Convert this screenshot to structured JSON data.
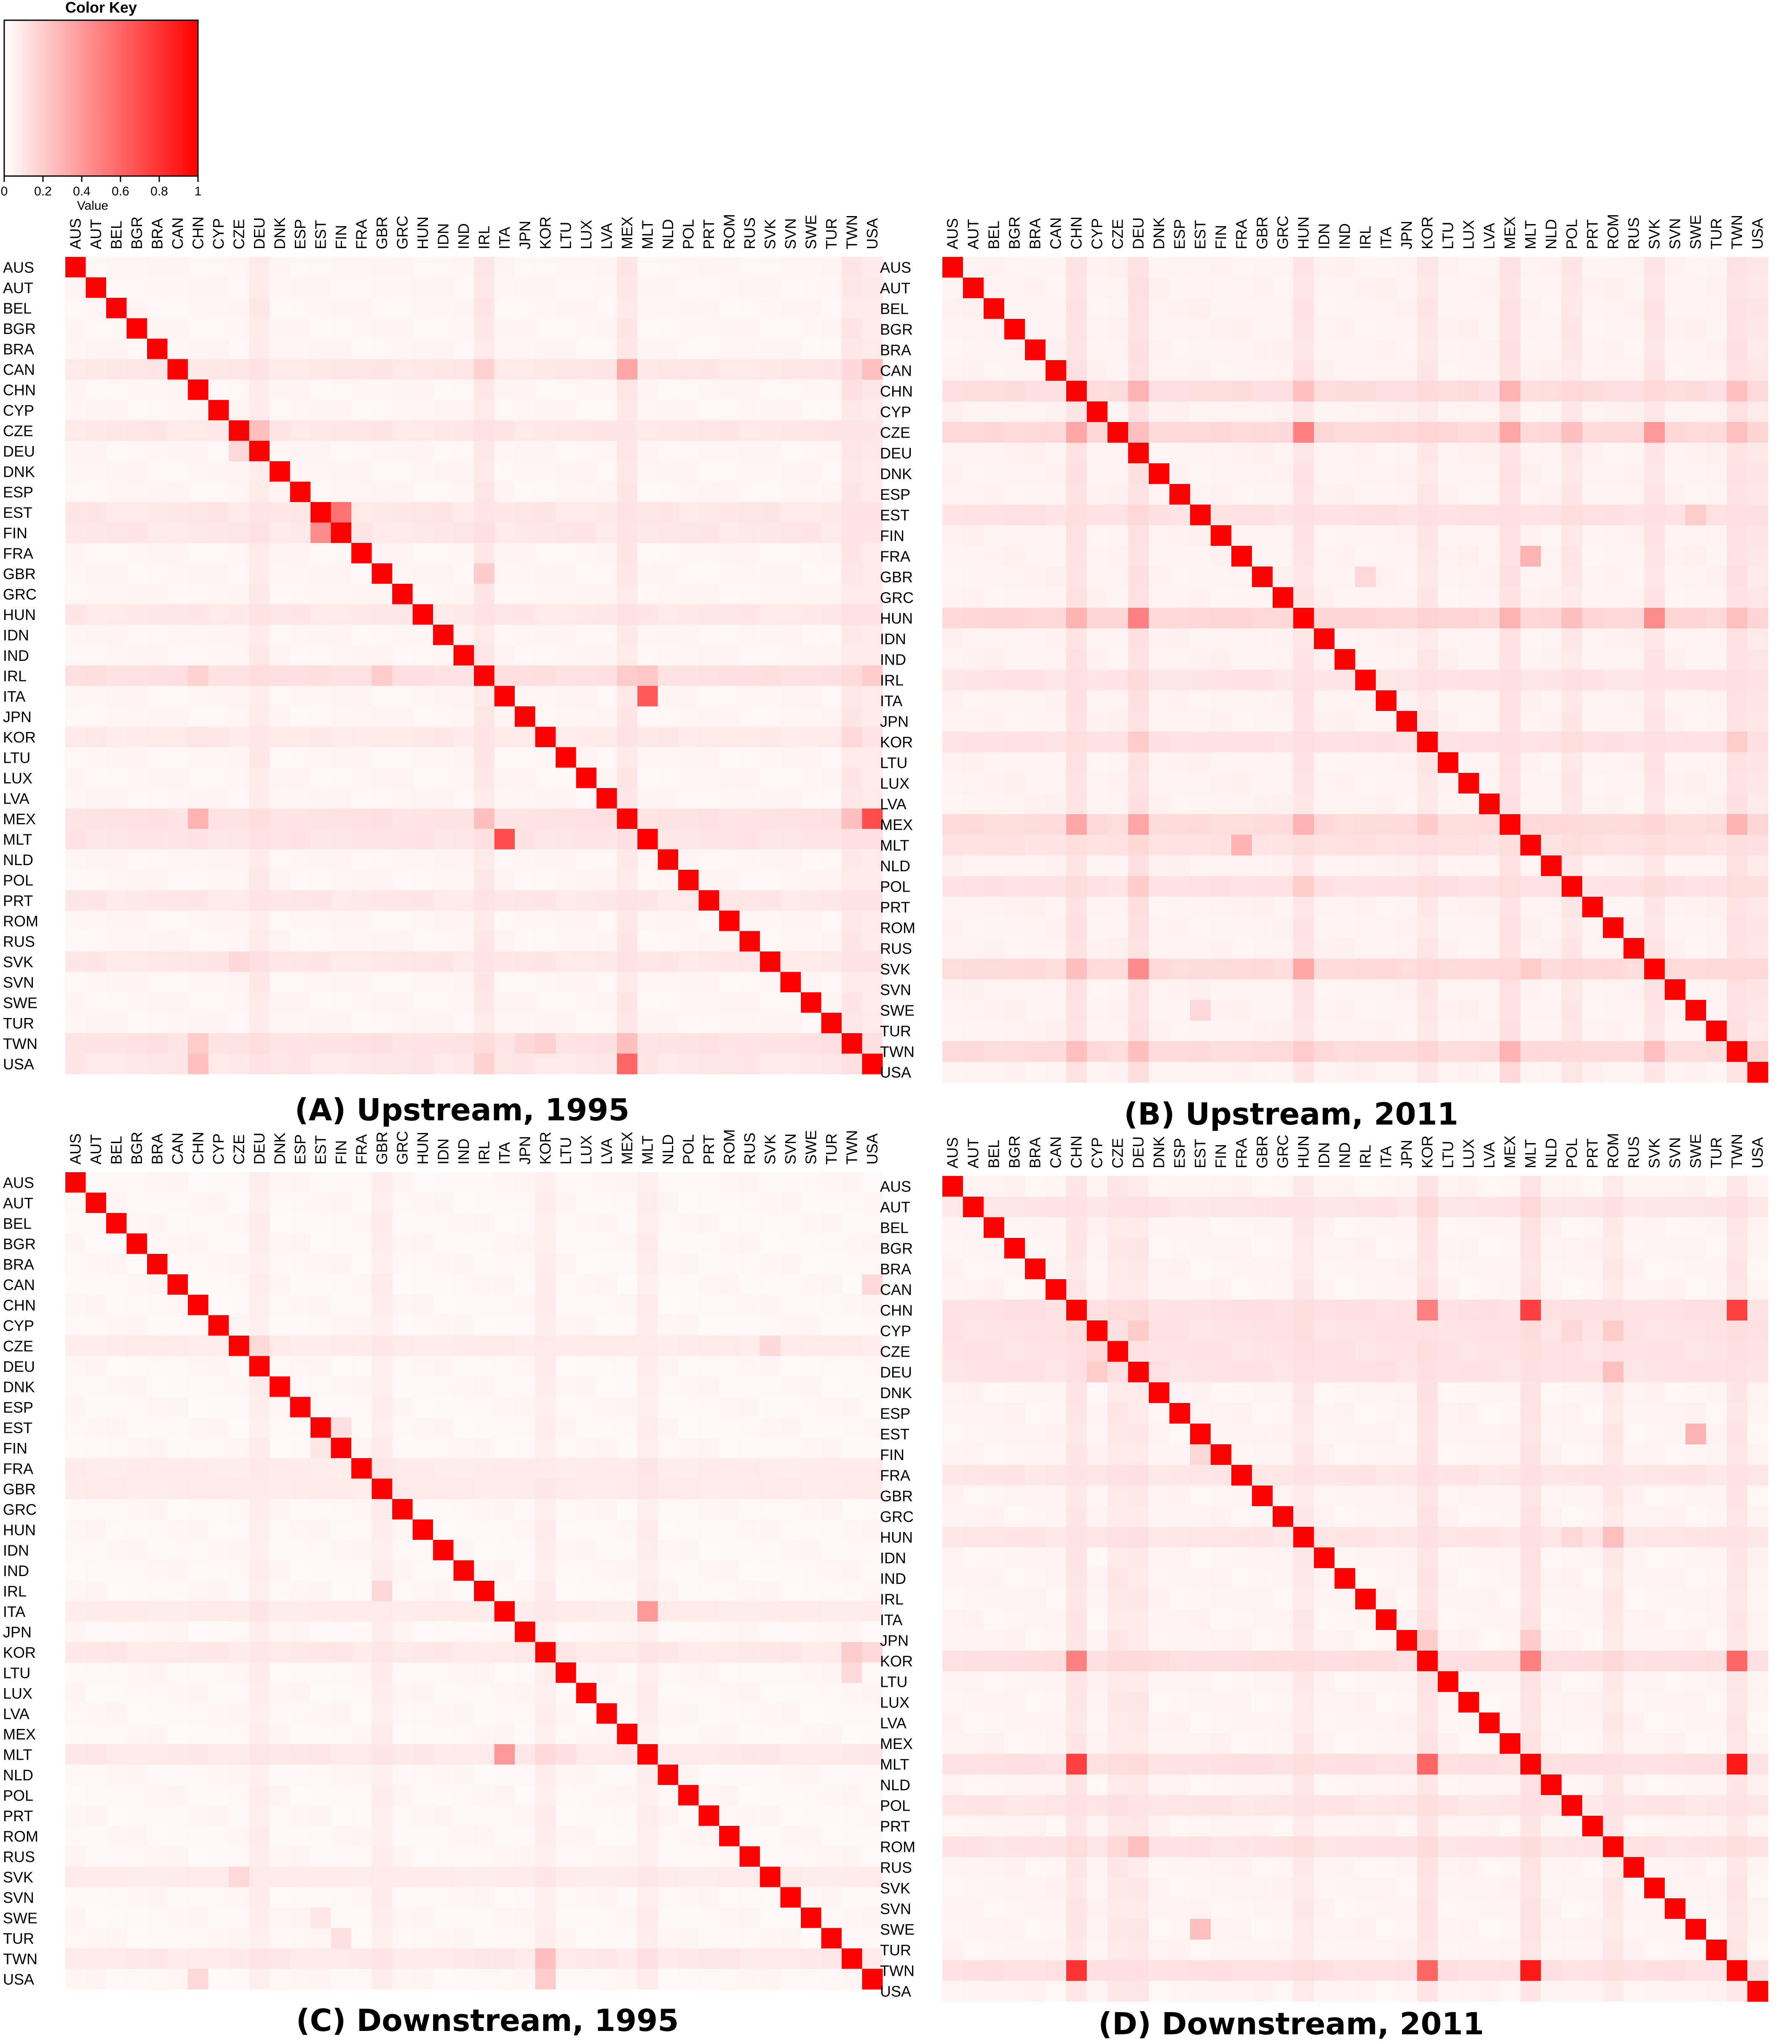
{
  "color_key": {
    "title": "Color Key",
    "xlabel": "Value",
    "ticks": [
      0,
      0.2,
      0.4,
      0.6,
      0.8,
      1
    ],
    "tick_labels": [
      "0",
      "0.2",
      "0.4",
      "0.6",
      "0.8",
      "1"
    ],
    "low_color": "#ffffff",
    "high_color": "#ff0000"
  },
  "chart_data": [
    {
      "type": "heatmap",
      "title": "(A) Upstream, 1995",
      "rows": [
        "AUS",
        "AUT",
        "BEL",
        "BGR",
        "BRA",
        "CAN",
        "CHN",
        "CYP",
        "CZE",
        "DEU",
        "DNK",
        "ESP",
        "EST",
        "FIN",
        "FRA",
        "GBR",
        "GRC",
        "HUN",
        "IDN",
        "IND",
        "IRL",
        "ITA",
        "JPN",
        "KOR",
        "LTU",
        "LUX",
        "LVA",
        "MEX",
        "MLT",
        "NLD",
        "POL",
        "PRT",
        "ROM",
        "RUS",
        "SVK",
        "SVN",
        "SWE",
        "TUR",
        "TWN",
        "USA"
      ],
      "columns": [
        "AUS",
        "AUT",
        "BEL",
        "BGR",
        "BRA",
        "CAN",
        "CHN",
        "CYP",
        "CZE",
        "DEU",
        "DNK",
        "ESP",
        "EST",
        "FIN",
        "FRA",
        "GBR",
        "GRC",
        "HUN",
        "IDN",
        "IND",
        "IRL",
        "ITA",
        "JPN",
        "KOR",
        "LTU",
        "LUX",
        "LVA",
        "MEX",
        "MLT",
        "NLD",
        "POL",
        "PRT",
        "ROM",
        "RUS",
        "SVK",
        "SVN",
        "SWE",
        "TUR",
        "TWN",
        "USA"
      ],
      "diagonal": 1,
      "background": 0.03,
      "row_levels": {
        "CAN": 0.06,
        "CZE": 0.06,
        "EST": 0.06,
        "FIN": 0.06,
        "HUN": 0.06,
        "IRL": 0.09,
        "KOR": 0.05,
        "MEX": 0.08,
        "MLT": 0.07,
        "PRT": 0.06,
        "SVK": 0.06,
        "TWN": 0.08,
        "USA": 0.06
      },
      "col_levels": {
        "DEU": 0.05,
        "IRL": 0.06,
        "MEX": 0.06,
        "TWN": 0.06,
        "USA": 0.05
      },
      "highlights": [
        [
          "CAN",
          "MEX",
          0.35
        ],
        [
          "CAN",
          "USA",
          0.25
        ],
        [
          "CAN",
          "IRL",
          0.18
        ],
        [
          "CAN",
          "TWN",
          0.15
        ],
        [
          "CHN",
          "TWN",
          0.12
        ],
        [
          "CZE",
          "DEU",
          0.25
        ],
        [
          "DEU",
          "CZE",
          0.15
        ],
        [
          "EST",
          "FIN",
          0.55
        ],
        [
          "FIN",
          "EST",
          0.45
        ],
        [
          "GBR",
          "IRL",
          0.2
        ],
        [
          "IRL",
          "CHN",
          0.18
        ],
        [
          "IRL",
          "GBR",
          0.2
        ],
        [
          "IRL",
          "MEX",
          0.2
        ],
        [
          "IRL",
          "MLT",
          0.22
        ],
        [
          "IRL",
          "USA",
          0.2
        ],
        [
          "ITA",
          "MLT",
          0.65
        ],
        [
          "KOR",
          "CHN",
          0.1
        ],
        [
          "KOR",
          "TWN",
          0.15
        ],
        [
          "MEX",
          "CHN",
          0.3
        ],
        [
          "MEX",
          "IRL",
          0.25
        ],
        [
          "MEX",
          "TWN",
          0.25
        ],
        [
          "MEX",
          "USA",
          0.7
        ],
        [
          "MLT",
          "ITA",
          0.7
        ],
        [
          "MLT",
          "MEX",
          0.12
        ],
        [
          "SVK",
          "CZE",
          0.15
        ],
        [
          "SVK",
          "DEU",
          0.12
        ],
        [
          "TWN",
          "CHN",
          0.2
        ],
        [
          "TWN",
          "KOR",
          0.18
        ],
        [
          "TWN",
          "MEX",
          0.25
        ],
        [
          "TWN",
          "JPN",
          0.15
        ],
        [
          "USA",
          "CHN",
          0.25
        ],
        [
          "USA",
          "MEX",
          0.6
        ],
        [
          "USA",
          "IRL",
          0.18
        ]
      ]
    },
    {
      "type": "heatmap",
      "title": "(B) Upstream, 2011",
      "rows": [
        "AUS",
        "AUT",
        "BEL",
        "BGR",
        "BRA",
        "CAN",
        "CHN",
        "CYP",
        "CZE",
        "DEU",
        "DNK",
        "ESP",
        "EST",
        "FIN",
        "FRA",
        "GBR",
        "GRC",
        "HUN",
        "IDN",
        "IND",
        "IRL",
        "ITA",
        "JPN",
        "KOR",
        "LTU",
        "LUX",
        "LVA",
        "MEX",
        "MLT",
        "NLD",
        "POL",
        "PRT",
        "ROM",
        "RUS",
        "SVK",
        "SVN",
        "SWE",
        "TUR",
        "TWN",
        "USA"
      ],
      "columns": [
        "AUS",
        "AUT",
        "BEL",
        "BGR",
        "BRA",
        "CAN",
        "CHN",
        "CYP",
        "CZE",
        "DEU",
        "DNK",
        "ESP",
        "EST",
        "FIN",
        "FRA",
        "GBR",
        "GRC",
        "HUN",
        "IDN",
        "IND",
        "IRL",
        "ITA",
        "JPN",
        "KOR",
        "LTU",
        "LUX",
        "LVA",
        "MEX",
        "MLT",
        "NLD",
        "POL",
        "PRT",
        "ROM",
        "RUS",
        "SVK",
        "SVN",
        "SWE",
        "TUR",
        "TWN",
        "USA"
      ],
      "diagonal": 1,
      "background": 0.04,
      "row_levels": {
        "CHN": 0.09,
        "CZE": 0.11,
        "HUN": 0.12,
        "MEX": 0.1,
        "SVK": 0.1,
        "TWN": 0.1,
        "KOR": 0.07,
        "POL": 0.07,
        "IRL": 0.06,
        "MLT": 0.07,
        "EST": 0.07
      },
      "col_levels": {
        "CHN": 0.07,
        "DEU": 0.08,
        "HUN": 0.06,
        "KOR": 0.05,
        "MEX": 0.07,
        "POL": 0.05,
        "SVK": 0.06,
        "TWN": 0.07,
        "USA": 0.05
      },
      "highlights": [
        [
          "CHN",
          "DEU",
          0.3
        ],
        [
          "CHN",
          "HUN",
          0.25
        ],
        [
          "CHN",
          "MEX",
          0.3
        ],
        [
          "CHN",
          "TWN",
          0.25
        ],
        [
          "CZE",
          "CHN",
          0.35
        ],
        [
          "CZE",
          "DEU",
          0.25
        ],
        [
          "CZE",
          "HUN",
          0.5
        ],
        [
          "CZE",
          "MEX",
          0.35
        ],
        [
          "CZE",
          "SVK",
          0.4
        ],
        [
          "CZE",
          "POL",
          0.25
        ],
        [
          "CZE",
          "TWN",
          0.25
        ],
        [
          "HUN",
          "CHN",
          0.3
        ],
        [
          "HUN",
          "DEU",
          0.5
        ],
        [
          "HUN",
          "MEX",
          0.3
        ],
        [
          "HUN",
          "SVK",
          0.45
        ],
        [
          "HUN",
          "POL",
          0.25
        ],
        [
          "HUN",
          "TWN",
          0.25
        ],
        [
          "MEX",
          "CHN",
          0.35
        ],
        [
          "MEX",
          "DEU",
          0.35
        ],
        [
          "MEX",
          "HUN",
          0.3
        ],
        [
          "MEX",
          "TWN",
          0.3
        ],
        [
          "MEX",
          "KOR",
          0.2
        ],
        [
          "SVK",
          "DEU",
          0.45
        ],
        [
          "SVK",
          "CHN",
          0.25
        ],
        [
          "SVK",
          "HUN",
          0.35
        ],
        [
          "SVK",
          "MLT",
          0.2
        ],
        [
          "TWN",
          "CHN",
          0.25
        ],
        [
          "TWN",
          "DEU",
          0.25
        ],
        [
          "TWN",
          "HUN",
          0.2
        ],
        [
          "TWN",
          "MEX",
          0.3
        ],
        [
          "TWN",
          "SVK",
          0.25
        ],
        [
          "MLT",
          "FRA",
          0.3
        ],
        [
          "FRA",
          "MLT",
          0.3
        ],
        [
          "KOR",
          "DEU",
          0.2
        ],
        [
          "KOR",
          "TWN",
          0.2
        ],
        [
          "POL",
          "DEU",
          0.2
        ],
        [
          "POL",
          "HUN",
          0.2
        ],
        [
          "EST",
          "SWE",
          0.2
        ],
        [
          "SWE",
          "EST",
          0.15
        ],
        [
          "GBR",
          "IRL",
          0.15
        ],
        [
          "USA",
          "MEX",
          0.15
        ]
      ]
    },
    {
      "type": "heatmap",
      "title": "(C) Downstream, 1995",
      "rows": [
        "AUS",
        "AUT",
        "BEL",
        "BGR",
        "BRA",
        "CAN",
        "CHN",
        "CYP",
        "CZE",
        "DEU",
        "DNK",
        "ESP",
        "EST",
        "FIN",
        "FRA",
        "GBR",
        "GRC",
        "HUN",
        "IDN",
        "IND",
        "IRL",
        "ITA",
        "JPN",
        "KOR",
        "LTU",
        "LUX",
        "LVA",
        "MEX",
        "MLT",
        "NLD",
        "POL",
        "PRT",
        "ROM",
        "RUS",
        "SVK",
        "SVN",
        "SWE",
        "TUR",
        "TWN",
        "USA"
      ],
      "columns": [
        "AUS",
        "AUT",
        "BEL",
        "BGR",
        "BRA",
        "CAN",
        "CHN",
        "CYP",
        "CZE",
        "DEU",
        "DNK",
        "ESP",
        "EST",
        "FIN",
        "FRA",
        "GBR",
        "GRC",
        "HUN",
        "IDN",
        "IND",
        "IRL",
        "ITA",
        "JPN",
        "KOR",
        "LTU",
        "LUX",
        "LVA",
        "MEX",
        "MLT",
        "NLD",
        "POL",
        "PRT",
        "ROM",
        "RUS",
        "SVK",
        "SVN",
        "SWE",
        "TUR",
        "TWN",
        "USA"
      ],
      "diagonal": 1,
      "background": 0.025,
      "row_levels": {
        "CZE": 0.05,
        "FRA": 0.05,
        "GBR": 0.05,
        "ITA": 0.05,
        "KOR": 0.06,
        "MLT": 0.06,
        "TWN": 0.06,
        "SVK": 0.05
      },
      "col_levels": {
        "DEU": 0.04,
        "GBR": 0.04,
        "KOR": 0.04,
        "MLT": 0.04
      },
      "highlights": [
        [
          "ITA",
          "MLT",
          0.4
        ],
        [
          "MLT",
          "ITA",
          0.4
        ],
        [
          "MLT",
          "KOR",
          0.15
        ],
        [
          "MLT",
          "LTU",
          0.12
        ],
        [
          "KOR",
          "TWN",
          0.2
        ],
        [
          "KOR",
          "USA",
          0.15
        ],
        [
          "TWN",
          "KOR",
          0.25
        ],
        [
          "TWN",
          "MLT",
          0.12
        ],
        [
          "USA",
          "CHN",
          0.15
        ],
        [
          "USA",
          "KOR",
          0.2
        ],
        [
          "CZE",
          "DEU",
          0.15
        ],
        [
          "CZE",
          "SVK",
          0.15
        ],
        [
          "SVK",
          "CZE",
          0.15
        ],
        [
          "CAN",
          "USA",
          0.15
        ],
        [
          "CAN",
          "KOR",
          0.08
        ],
        [
          "IRL",
          "GBR",
          0.15
        ],
        [
          "LTU",
          "TWN",
          0.15
        ],
        [
          "TUR",
          "FIN",
          0.12
        ],
        [
          "EST",
          "FIN",
          0.12
        ],
        [
          "FIN",
          "EST",
          0.1
        ],
        [
          "SWE",
          "EST",
          0.1
        ]
      ]
    },
    {
      "type": "heatmap",
      "title": "(D) Downstream, 2011",
      "rows": [
        "AUS",
        "AUT",
        "BEL",
        "BGR",
        "BRA",
        "CAN",
        "CHN",
        "CYP",
        "CZE",
        "DEU",
        "DNK",
        "ESP",
        "EST",
        "FIN",
        "FRA",
        "GBR",
        "GRC",
        "HUN",
        "IDN",
        "IND",
        "IRL",
        "ITA",
        "JPN",
        "KOR",
        "LTU",
        "LUX",
        "LVA",
        "MEX",
        "MLT",
        "NLD",
        "POL",
        "PRT",
        "ROM",
        "RUS",
        "SVK",
        "SVN",
        "SWE",
        "TUR",
        "TWN",
        "USA"
      ],
      "columns": [
        "AUS",
        "AUT",
        "BEL",
        "BGR",
        "BRA",
        "CAN",
        "CHN",
        "CYP",
        "CZE",
        "DEU",
        "DNK",
        "ESP",
        "EST",
        "FIN",
        "FRA",
        "GBR",
        "GRC",
        "HUN",
        "IDN",
        "IND",
        "IRL",
        "ITA",
        "JPN",
        "KOR",
        "LTU",
        "LUX",
        "LVA",
        "MEX",
        "MLT",
        "NLD",
        "POL",
        "PRT",
        "ROM",
        "RUS",
        "SVK",
        "SVN",
        "SWE",
        "TUR",
        "TWN",
        "USA"
      ],
      "diagonal": 1,
      "background": 0.035,
      "row_levels": {
        "AUT": 0.06,
        "CHN": 0.08,
        "CYP": 0.07,
        "CZE": 0.07,
        "DEU": 0.07,
        "KOR": 0.09,
        "MLT": 0.08,
        "TWN": 0.08,
        "ROM": 0.07,
        "FRA": 0.06,
        "HUN": 0.06,
        "POL": 0.06
      },
      "col_levels": {
        "CHN": 0.06,
        "CZE": 0.05,
        "DEU": 0.05,
        "KOR": 0.07,
        "MLT": 0.07,
        "TWN": 0.06,
        "ROM": 0.05,
        "HUN": 0.05
      },
      "highlights": [
        [
          "CHN",
          "KOR",
          0.5
        ],
        [
          "CHN",
          "MLT",
          0.75
        ],
        [
          "CHN",
          "TWN",
          0.75
        ],
        [
          "KOR",
          "CHN",
          0.5
        ],
        [
          "KOR",
          "MLT",
          0.5
        ],
        [
          "KOR",
          "TWN",
          0.6
        ],
        [
          "MLT",
          "CHN",
          0.75
        ],
        [
          "MLT",
          "KOR",
          0.6
        ],
        [
          "MLT",
          "TWN",
          0.9
        ],
        [
          "TWN",
          "CHN",
          0.8
        ],
        [
          "TWN",
          "KOR",
          0.6
        ],
        [
          "TWN",
          "MLT",
          0.9
        ],
        [
          "CYP",
          "DEU",
          0.2
        ],
        [
          "CYP",
          "ROM",
          0.2
        ],
        [
          "DEU",
          "ROM",
          0.25
        ],
        [
          "DEU",
          "CYP",
          0.2
        ],
        [
          "CZE",
          "CYP",
          0.15
        ],
        [
          "ROM",
          "DEU",
          0.25
        ],
        [
          "ROM",
          "CZE",
          0.15
        ],
        [
          "EST",
          "SWE",
          0.3
        ],
        [
          "SWE",
          "EST",
          0.25
        ],
        [
          "FIN",
          "EST",
          0.15
        ],
        [
          "HUN",
          "ROM",
          0.25
        ],
        [
          "HUN",
          "POL",
          0.15
        ],
        [
          "JPN",
          "KOR",
          0.2
        ],
        [
          "JPN",
          "MLT",
          0.2
        ],
        [
          "AUT",
          "MLT",
          0.15
        ],
        [
          "AUT",
          "KOR",
          0.15
        ],
        [
          "CYP",
          "POL",
          0.15
        ]
      ]
    }
  ]
}
